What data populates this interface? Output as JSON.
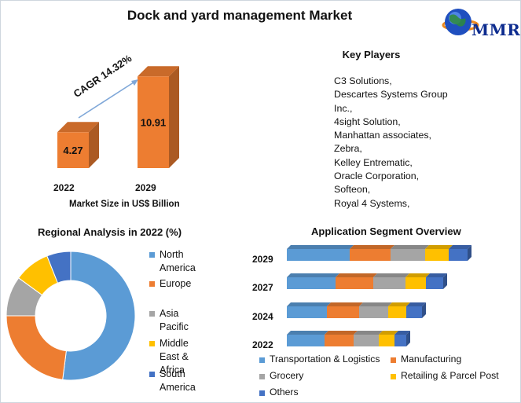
{
  "title": "Dock and yard management Market",
  "logo": {
    "text": "MMR",
    "icon": "globe-icon"
  },
  "market_size": {
    "years": [
      "2022",
      "2029"
    ],
    "values": [
      "4.27",
      "10.91"
    ],
    "xlabel": "Market Size in US$ Billion",
    "cagr": "CAGR 14.32%",
    "color": "#ED7D31"
  },
  "key_players": {
    "title": "Key Players",
    "lines": [
      "C3 Solutions,",
      "Descartes Systems Group",
      "Inc.,",
      "4sight Solution,",
      "Manhattan associates,",
      "Zebra,",
      "Kelley Entrematic,",
      "Oracle Corporation,",
      "Softeon,",
      "Royal 4 Systems,"
    ]
  },
  "regional": {
    "title": "Regional Analysis in 2022 (%)",
    "legend": [
      "North America",
      "Europe",
      "Asia Pacific",
      "Middle East &\nAfrica",
      "South America"
    ]
  },
  "application": {
    "title": "Application Segment Overview",
    "years": [
      "2029",
      "2027",
      "2024",
      "2022"
    ],
    "legend": [
      "Transportation & Logistics",
      "Manufacturing",
      "Grocery",
      "Retailing & Parcel Post",
      "Others"
    ]
  },
  "chart_data": [
    {
      "type": "bar",
      "categories": [
        "2022",
        "2029"
      ],
      "values": [
        4.27,
        10.91
      ],
      "title": "",
      "xlabel": "Market Size in US$ Billion",
      "ylabel": "",
      "annotation": "CAGR 14.32%",
      "color": "#ED7D31"
    },
    {
      "type": "pie",
      "donut": true,
      "title": "Regional Analysis in 2022 (%)",
      "labels": [
        "North America",
        "Europe",
        "Asia Pacific",
        "Middle East & Africa",
        "South America"
      ],
      "values": [
        52,
        23,
        10,
        9,
        6
      ],
      "colors": [
        "#5B9BD5",
        "#ED7D31",
        "#A5A5A5",
        "#FFC000",
        "#4472C4"
      ],
      "legend": "right"
    },
    {
      "type": "bar",
      "orientation": "horizontal",
      "stacked": true,
      "title": "Application Segment Overview",
      "categories": [
        "2029",
        "2027",
        "2024",
        "2022"
      ],
      "series": [
        {
          "name": "Transportation & Logistics",
          "values": [
            80,
            62,
            51,
            48
          ],
          "color": "#5B9BD5"
        },
        {
          "name": "Manufacturing",
          "values": [
            52,
            48,
            41,
            37
          ],
          "color": "#ED7D31"
        },
        {
          "name": "Grocery",
          "values": [
            44,
            41,
            37,
            32
          ],
          "color": "#A5A5A5"
        },
        {
          "name": "Retailing & Parcel Post",
          "values": [
            30,
            26,
            23,
            20
          ],
          "color": "#FFC000"
        },
        {
          "name": "Others",
          "values": [
            24,
            22,
            20,
            15
          ],
          "color": "#4472C4"
        }
      ],
      "legend": "bottom"
    }
  ]
}
